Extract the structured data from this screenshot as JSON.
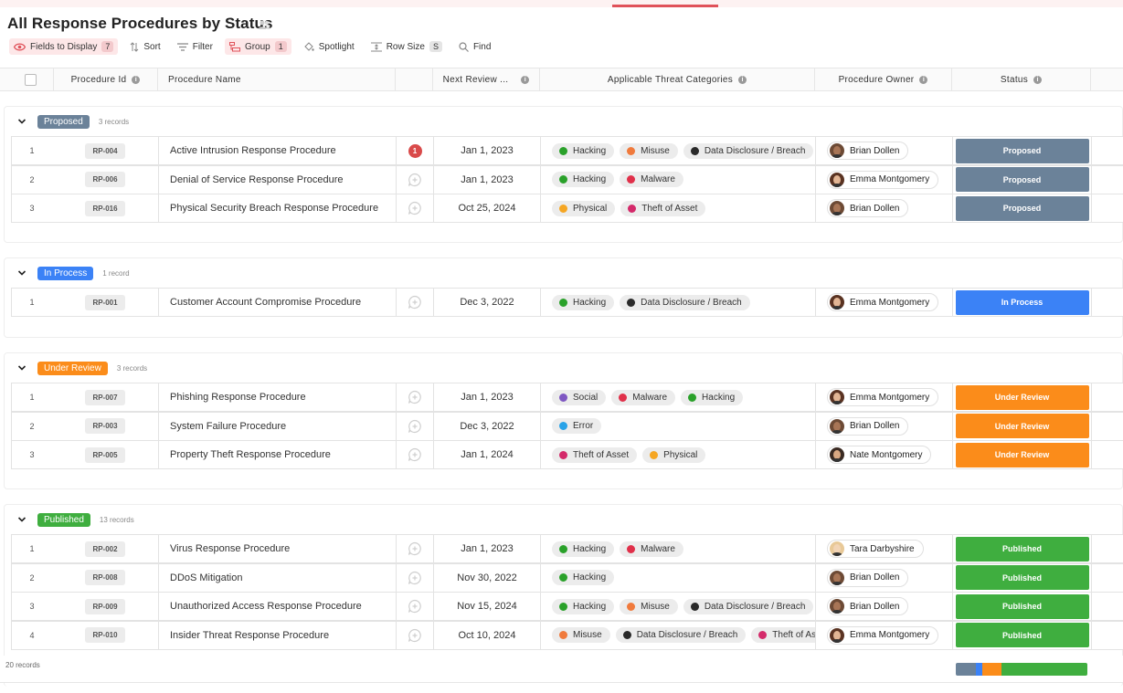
{
  "page": {
    "title": "All Response Procedures by Status"
  },
  "toolbar": {
    "fields_label": "Fields to Display",
    "fields_count": "7",
    "sort_label": "Sort",
    "filter_label": "Filter",
    "group_label": "Group",
    "group_count": "1",
    "spotlight_label": "Spotlight",
    "rowsize_label": "Row Size",
    "rowsize_value": "S",
    "find_label": "Find"
  },
  "columns": {
    "id": "Procedure Id",
    "name": "Procedure Name",
    "next_review": "Next Review ...",
    "categories": "Applicable Threat Categories",
    "owner": "Procedure Owner",
    "status": "Status"
  },
  "colors": {
    "Proposed": "#6b8299",
    "In Process": "#3b82f6",
    "Under Review": "#fb8c1a",
    "Published": "#3fae3f",
    "Hacking": "#2aa12a",
    "Misuse": "#f07a3c",
    "Data Disclosure / Breach": "#2a2a2a",
    "Malware": "#e0304a",
    "Physical": "#f5a623",
    "Theft of Asset": "#d42a6a",
    "Social": "#7e57c2",
    "Error": "#29a3e8"
  },
  "groups": [
    {
      "name": "Proposed",
      "count": "3 records",
      "rows": [
        {
          "num": "1",
          "id": "RP-004",
          "name": "Active Intrusion Response Procedure",
          "comments": "1",
          "date": "Jan 1, 2023",
          "cats": [
            "Hacking",
            "Misuse",
            "Data Disclosure / Breach"
          ],
          "owner": "Brian Dollen",
          "status": "Proposed"
        },
        {
          "num": "2",
          "id": "RP-006",
          "name": "Denial of Service Response Procedure",
          "comments": "",
          "date": "Jan 1, 2023",
          "cats": [
            "Hacking",
            "Malware"
          ],
          "owner": "Emma Montgomery",
          "status": "Proposed"
        },
        {
          "num": "3",
          "id": "RP-016",
          "name": "Physical Security Breach Response Procedure",
          "comments": "",
          "date": "Oct 25, 2024",
          "cats": [
            "Physical",
            "Theft of Asset"
          ],
          "owner": "Brian Dollen",
          "status": "Proposed"
        }
      ]
    },
    {
      "name": "In Process",
      "count": "1 record",
      "rows": [
        {
          "num": "1",
          "id": "RP-001",
          "name": "Customer Account Compromise Procedure",
          "comments": "",
          "date": "Dec 3, 2022",
          "cats": [
            "Hacking",
            "Data Disclosure / Breach"
          ],
          "owner": "Emma Montgomery",
          "status": "In Process"
        }
      ]
    },
    {
      "name": "Under Review",
      "count": "3 records",
      "rows": [
        {
          "num": "1",
          "id": "RP-007",
          "name": "Phishing Response Procedure",
          "comments": "",
          "date": "Jan 1, 2023",
          "cats": [
            "Social",
            "Malware",
            "Hacking"
          ],
          "owner": "Emma Montgomery",
          "status": "Under Review"
        },
        {
          "num": "2",
          "id": "RP-003",
          "name": "System Failure Procedure",
          "comments": "",
          "date": "Dec 3, 2022",
          "cats": [
            "Error"
          ],
          "owner": "Brian Dollen",
          "status": "Under Review"
        },
        {
          "num": "3",
          "id": "RP-005",
          "name": "Property Theft Response Procedure",
          "comments": "",
          "date": "Jan 1, 2024",
          "cats": [
            "Theft of Asset",
            "Physical"
          ],
          "owner": "Nate Montgomery",
          "status": "Under Review"
        }
      ]
    },
    {
      "name": "Published",
      "count": "13 records",
      "rows": [
        {
          "num": "1",
          "id": "RP-002",
          "name": "Virus Response Procedure",
          "comments": "",
          "date": "Jan 1, 2023",
          "cats": [
            "Hacking",
            "Malware"
          ],
          "owner": "Tara Darbyshire",
          "status": "Published"
        },
        {
          "num": "2",
          "id": "RP-008",
          "name": "DDoS Mitigation",
          "comments": "",
          "date": "Nov 30, 2022",
          "cats": [
            "Hacking"
          ],
          "owner": "Brian Dollen",
          "status": "Published"
        },
        {
          "num": "3",
          "id": "RP-009",
          "name": "Unauthorized Access Response Procedure",
          "comments": "",
          "date": "Nov 15, 2024",
          "cats": [
            "Hacking",
            "Misuse",
            "Data Disclosure / Breach"
          ],
          "owner": "Brian Dollen",
          "status": "Published"
        },
        {
          "num": "4",
          "id": "RP-010",
          "name": "Insider Threat Response Procedure",
          "comments": "",
          "date": "Oct 10, 2024",
          "cats": [
            "Misuse",
            "Data Disclosure / Breach",
            "Theft of As"
          ],
          "owner": "Emma Montgomery",
          "status": "Published"
        }
      ]
    }
  ],
  "footer": {
    "record_count": "20 records",
    "status_bar": [
      {
        "status": "Proposed",
        "fraction": 0.15
      },
      {
        "status": "In Process",
        "fraction": 0.05
      },
      {
        "status": "Under Review",
        "fraction": 0.15
      },
      {
        "status": "Published",
        "fraction": 0.65
      }
    ]
  }
}
